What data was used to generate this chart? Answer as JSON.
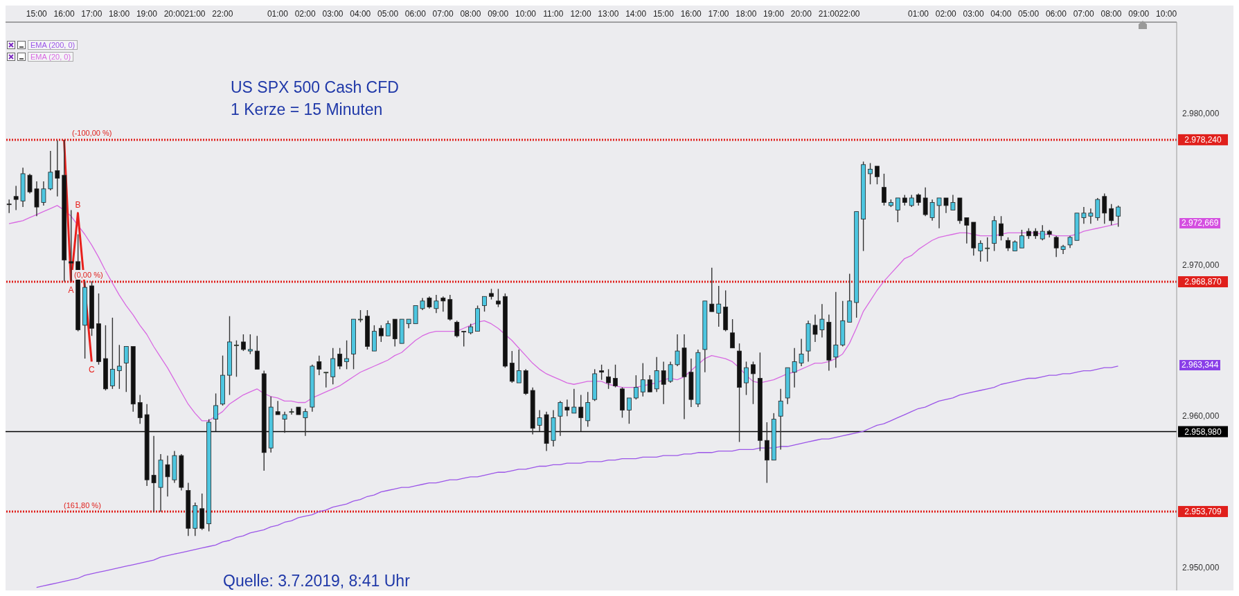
{
  "chart_data": {
    "type": "candlestick",
    "title": "US SPX 500 Cash CFD",
    "subtitle": "1 Kerze = 15 Minuten",
    "annotations": [
      "Quelle: 3.7.2019, 8:41 Uhr",
      {
        "text": "(-100,00 %)",
        "y": 2978.24
      },
      {
        "text": "(0,00 %)",
        "y": 2968.87
      },
      "(161,80 %)",
      "2.972,669",
      "2.963,344"
    ],
    "categories": [
      null,
      null,
      null,
      null,
      "15:00",
      null,
      null,
      null,
      "16:00",
      null,
      null,
      null,
      "17:00",
      null,
      null,
      null,
      "18:00",
      null,
      null,
      null,
      "19:00",
      null,
      null,
      null,
      "20:00",
      null,
      null,
      "21:00",
      null,
      null,
      null,
      "22:00",
      null,
      null,
      null,
      null,
      null,
      null,
      null,
      "01:00",
      null,
      null,
      null,
      "02:00",
      null,
      null,
      null,
      "03:00",
      null,
      null,
      null,
      "04:00",
      null,
      null,
      null,
      "05:00",
      null,
      null,
      null,
      "06:00",
      null,
      null,
      null,
      "07:00",
      null,
      null,
      null,
      "08:00",
      null,
      null,
      null,
      "09:00",
      null,
      null,
      null,
      "10:00",
      null,
      null,
      null,
      "11:00",
      null,
      null,
      null,
      "12:00",
      null,
      null,
      null,
      "13:00",
      null,
      null,
      null,
      "14:00",
      null,
      null,
      null,
      "15:00",
      null,
      null,
      null,
      "16:00",
      null,
      null,
      null,
      "17:00",
      null,
      null,
      null,
      "18:00",
      null,
      null,
      null,
      "19:00",
      null,
      null,
      null,
      "20:00",
      null,
      null,
      null,
      "21:00",
      null,
      null,
      "22:00",
      null,
      null,
      null,
      null,
      null,
      null,
      null,
      null,
      null,
      "01:00",
      null,
      null,
      null,
      "02:00",
      null,
      null,
      null,
      "03:00",
      null,
      null,
      null,
      "04:00",
      null,
      null,
      null,
      "05:00",
      null,
      null,
      null,
      "06:00",
      null,
      null,
      null,
      "07:00",
      null,
      null,
      null,
      "08:00",
      null,
      null,
      null,
      "09:00",
      null,
      null,
      null,
      "10:00",
      null
    ],
    "ohlc": [
      [
        2974.0,
        2974.3,
        2973.4,
        2974.0
      ],
      [
        2974.5,
        2975.2,
        2973.6,
        2974.3
      ],
      [
        2974.2,
        2976.4,
        2973.8,
        2976.0
      ],
      [
        2975.9,
        2976.0,
        2974.7,
        2974.8
      ],
      [
        2975.0,
        2975.5,
        2973.2,
        2973.8
      ],
      [
        2974.1,
        2975.5,
        2973.9,
        2975.0
      ],
      [
        2975.0,
        2977.5,
        2974.9,
        2976.1
      ],
      [
        2976.2,
        2978.2,
        2974.5,
        2975.7
      ],
      [
        2975.9,
        2978.24,
        2968.9,
        2970.3
      ],
      [
        2970.2,
        2973.6,
        2968.9,
        2970.1
      ],
      [
        2970.2,
        2972.0,
        2965.6,
        2965.7
      ],
      [
        2966.0,
        2968.9,
        2963.8,
        2968.5
      ],
      [
        2968.6,
        2968.9,
        2965.3,
        2965.8
      ],
      [
        2966.1,
        2968.1,
        2963.4,
        2963.6
      ],
      [
        2963.8,
        2966.0,
        2961.7,
        2961.8
      ],
      [
        2962.0,
        2966.5,
        2961.8,
        2963.1
      ],
      [
        2963.0,
        2964.7,
        2961.8,
        2963.3
      ],
      [
        2963.5,
        2964.6,
        2961.6,
        2964.6
      ],
      [
        2964.6,
        2964.6,
        2960.3,
        2960.8
      ],
      [
        2960.9,
        2961.4,
        2959.5,
        2959.9
      ],
      [
        2960.1,
        2960.8,
        2955.4,
        2955.8
      ],
      [
        2956.1,
        2958.7,
        2953.7,
        2955.6
      ],
      [
        2955.3,
        2957.5,
        2953.7,
        2957.1
      ],
      [
        2956.8,
        2957.4,
        2954.7,
        2956.0
      ],
      [
        2955.8,
        2957.7,
        2955.6,
        2957.4
      ],
      [
        2957.4,
        2957.5,
        2955.1,
        2955.3
      ],
      [
        2955.1,
        2955.6,
        2952.1,
        2952.6
      ],
      [
        2952.6,
        2954.3,
        2952.1,
        2954.1
      ],
      [
        2953.9,
        2954.9,
        2952.5,
        2952.6
      ],
      [
        2952.9,
        2959.8,
        2952.4,
        2959.6
      ],
      [
        2959.8,
        2961.5,
        2959.0,
        2960.7
      ],
      [
        2960.8,
        2964.0,
        2960.7,
        2962.7
      ],
      [
        2962.7,
        2966.6,
        2961.4,
        2964.9
      ],
      [
        2964.7,
        2965.0,
        2962.6,
        2964.7
      ],
      [
        2964.9,
        2965.4,
        2964.3,
        2964.4
      ],
      [
        2964.3,
        2965.4,
        2964.1,
        2964.4
      ],
      [
        2964.3,
        2965.3,
        2963.1,
        2963.1
      ],
      [
        2962.8,
        2963.0,
        2956.4,
        2957.6
      ],
      [
        2957.9,
        2961.3,
        2957.6,
        2960.6
      ],
      [
        2960.3,
        2961.0,
        2960.1,
        2960.1
      ],
      [
        2959.8,
        2960.3,
        2958.9,
        2960.1
      ],
      [
        2960.3,
        2960.5,
        2960.1,
        2960.3
      ],
      [
        2960.6,
        2960.6,
        2960.1,
        2960.1
      ],
      [
        2959.9,
        2960.5,
        2958.7,
        2960.3
      ],
      [
        2960.6,
        2963.4,
        2960.3,
        2963.3
      ],
      [
        2963.6,
        2964.0,
        2962.7,
        2963.1
      ],
      [
        2962.9,
        2962.9,
        2961.9,
        2962.9
      ],
      [
        2962.6,
        2964.5,
        2962.1,
        2963.8
      ],
      [
        2964.1,
        2964.5,
        2963.1,
        2963.3
      ],
      [
        2963.6,
        2965.0,
        2963.1,
        2963.8
      ],
      [
        2964.1,
        2966.4,
        2963.1,
        2966.4
      ],
      [
        2966.4,
        2967.0,
        2966.2,
        2966.4
      ],
      [
        2966.6,
        2967.0,
        2964.4,
        2964.6
      ],
      [
        2964.3,
        2966.0,
        2964.3,
        2965.6
      ],
      [
        2965.8,
        2966.0,
        2964.9,
        2965.3
      ],
      [
        2965.3,
        2966.3,
        2965.3,
        2966.1
      ],
      [
        2966.4,
        2966.4,
        2964.6,
        2965.1
      ],
      [
        2964.8,
        2966.4,
        2964.8,
        2966.4
      ],
      [
        2966.1,
        2966.4,
        2965.8,
        2966.4
      ],
      [
        2966.1,
        2967.3,
        2966.1,
        2967.3
      ],
      [
        2967.1,
        2967.8,
        2967.0,
        2967.6
      ],
      [
        2967.8,
        2967.9,
        2967.1,
        2967.2
      ],
      [
        2967.1,
        2968.0,
        2966.8,
        2967.6
      ],
      [
        2967.8,
        2967.9,
        2966.9,
        2967.6
      ],
      [
        2967.7,
        2968.0,
        2966.3,
        2966.4
      ],
      [
        2966.2,
        2966.3,
        2965.2,
        2965.3
      ],
      [
        2965.6,
        2965.6,
        2964.6,
        2965.6
      ],
      [
        2965.5,
        2966.1,
        2965.4,
        2965.9
      ],
      [
        2965.6,
        2967.3,
        2965.6,
        2967.1
      ],
      [
        2967.3,
        2967.9,
        2966.9,
        2967.9
      ],
      [
        2968.1,
        2968.4,
        2967.7,
        2967.9
      ],
      [
        2967.6,
        2968.4,
        2967.2,
        2967.4
      ],
      [
        2967.9,
        2968.1,
        2963.2,
        2963.3
      ],
      [
        2963.5,
        2964.3,
        2962.2,
        2962.3
      ],
      [
        2962.2,
        2964.4,
        2962.2,
        2963.0
      ],
      [
        2963.0,
        2963.1,
        2961.4,
        2961.5
      ],
      [
        2961.7,
        2961.9,
        2958.8,
        2959.2
      ],
      [
        2959.4,
        2960.4,
        2959.0,
        2959.9
      ],
      [
        2960.1,
        2960.3,
        2957.7,
        2958.2
      ],
      [
        2958.4,
        2960.4,
        2958.0,
        2959.9
      ],
      [
        2960.0,
        2961.0,
        2958.7,
        2960.9
      ],
      [
        2960.6,
        2961.1,
        2960.0,
        2960.4
      ],
      [
        2960.2,
        2961.8,
        2960.2,
        2960.6
      ],
      [
        2960.6,
        2961.4,
        2959.0,
        2959.9
      ],
      [
        2959.7,
        2961.6,
        2959.3,
        2960.9
      ],
      [
        2961.1,
        2963.1,
        2961.0,
        2962.8
      ],
      [
        2963.0,
        2963.4,
        2962.4,
        2962.9
      ],
      [
        2962.6,
        2963.1,
        2961.8,
        2962.2
      ],
      [
        2962.5,
        2963.4,
        2961.9,
        2962.0
      ],
      [
        2961.8,
        2961.9,
        2959.9,
        2960.4
      ],
      [
        2960.4,
        2961.2,
        2959.5,
        2961.2
      ],
      [
        2961.2,
        2962.7,
        2961.1,
        2961.9
      ],
      [
        2961.6,
        2963.5,
        2961.3,
        2962.4
      ],
      [
        2962.4,
        2962.7,
        2961.6,
        2961.6
      ],
      [
        2961.8,
        2963.9,
        2961.6,
        2963.0
      ],
      [
        2963.0,
        2963.6,
        2960.8,
        2962.1
      ],
      [
        2962.3,
        2963.6,
        2962.2,
        2963.4
      ],
      [
        2963.4,
        2965.4,
        2963.3,
        2964.3
      ],
      [
        2964.5,
        2965.4,
        2959.8,
        2962.6
      ],
      [
        2962.9,
        2963.8,
        2960.6,
        2961.1
      ],
      [
        2960.8,
        2964.4,
        2960.6,
        2964.2
      ],
      [
        2964.4,
        2967.6,
        2962.9,
        2967.6
      ],
      [
        2967.4,
        2969.8,
        2966.9,
        2966.9
      ],
      [
        2966.8,
        2968.6,
        2965.9,
        2967.4
      ],
      [
        2967.2,
        2968.3,
        2965.6,
        2965.7
      ],
      [
        2965.5,
        2966.4,
        2964.5,
        2964.5
      ],
      [
        2964.3,
        2964.8,
        2958.3,
        2961.9
      ],
      [
        2962.2,
        2963.6,
        2961.4,
        2963.2
      ],
      [
        2963.4,
        2963.6,
        2960.8,
        2962.8
      ],
      [
        2962.5,
        2964.2,
        2957.7,
        2958.4
      ],
      [
        2958.4,
        2959.6,
        2955.6,
        2957.1
      ],
      [
        2957.1,
        2960.2,
        2957.1,
        2959.8
      ],
      [
        2960.0,
        2961.8,
        2957.8,
        2961.0
      ],
      [
        2961.2,
        2963.2,
        2960.8,
        2963.2
      ],
      [
        2962.9,
        2964.5,
        2961.9,
        2963.6
      ],
      [
        2963.5,
        2965.1,
        2963.3,
        2964.1
      ],
      [
        2964.3,
        2966.3,
        2963.6,
        2966.1
      ],
      [
        2966.0,
        2966.7,
        2964.9,
        2965.4
      ],
      [
        2965.7,
        2967.4,
        2965.2,
        2966.4
      ],
      [
        2966.2,
        2966.7,
        2963.0,
        2963.7
      ],
      [
        2963.9,
        2968.2,
        2963.2,
        2964.7
      ],
      [
        2964.7,
        2967.6,
        2964.6,
        2966.3
      ],
      [
        2966.2,
        2969.4,
        2966.2,
        2967.6
      ],
      [
        2967.5,
        2973.5,
        2966.5,
        2973.5
      ],
      [
        2973.0,
        2976.8,
        2970.9,
        2976.6
      ],
      [
        2976.0,
        2976.7,
        2975.3,
        2976.3
      ],
      [
        2976.5,
        2976.5,
        2975.3,
        2975.8
      ],
      [
        2975.1,
        2976.0,
        2973.9,
        2974.1
      ],
      [
        2973.9,
        2974.3,
        2973.8,
        2974.1
      ],
      [
        2973.6,
        2974.4,
        2972.8,
        2974.4
      ],
      [
        2974.4,
        2974.6,
        2973.9,
        2974.1
      ],
      [
        2973.9,
        2974.6,
        2973.8,
        2974.4
      ],
      [
        2974.6,
        2974.7,
        2973.9,
        2974.1
      ],
      [
        2974.4,
        2975.1,
        2973.2,
        2973.3
      ],
      [
        2973.1,
        2974.3,
        2972.9,
        2974.1
      ],
      [
        2973.9,
        2974.4,
        2972.4,
        2974.4
      ],
      [
        2974.4,
        2974.4,
        2973.4,
        2973.9
      ],
      [
        2973.6,
        2974.6,
        2973.6,
        2974.1
      ],
      [
        2974.4,
        2974.4,
        2972.7,
        2972.9
      ],
      [
        2973.1,
        2973.1,
        2971.4,
        2972.6
      ],
      [
        2972.8,
        2972.8,
        2970.6,
        2971.1
      ],
      [
        2970.9,
        2971.6,
        2970.2,
        2971.4
      ],
      [
        2971.1,
        2971.8,
        2970.2,
        2971.1
      ],
      [
        2971.4,
        2973.2,
        2970.9,
        2972.9
      ],
      [
        2972.7,
        2973.2,
        2971.6,
        2971.9
      ],
      [
        2971.6,
        2971.8,
        2970.9,
        2971.1
      ],
      [
        2970.9,
        2971.6,
        2970.9,
        2971.5
      ],
      [
        2971.1,
        2972.3,
        2971.1,
        2971.9
      ],
      [
        2972.2,
        2972.4,
        2971.7,
        2971.9
      ],
      [
        2972.2,
        2972.4,
        2971.7,
        2971.9
      ],
      [
        2971.7,
        2972.6,
        2971.6,
        2972.2
      ],
      [
        2972.2,
        2972.3,
        2971.8,
        2972.0
      ],
      [
        2971.8,
        2971.9,
        2970.5,
        2971.1
      ],
      [
        2971.0,
        2971.3,
        2970.7,
        2971.2
      ],
      [
        2971.3,
        2971.9,
        2971.1,
        2971.8
      ],
      [
        2971.6,
        2973.4,
        2971.6,
        2973.4
      ],
      [
        2973.1,
        2973.8,
        2972.7,
        2973.4
      ],
      [
        2973.2,
        2973.7,
        2972.7,
        2973.4
      ],
      [
        2973.1,
        2974.4,
        2972.9,
        2974.3
      ],
      [
        2974.5,
        2974.7,
        2972.7,
        2973.4
      ],
      [
        2973.7,
        2974.0,
        2972.6,
        2972.9
      ],
      [
        2973.2,
        2973.9,
        2972.5,
        2973.8
      ],
      null,
      null,
      null,
      null,
      null,
      null,
      null,
      null
    ],
    "colors": [
      "#111111",
      "#111111",
      "#4dc6e0",
      "#111111",
      "#111111",
      "#4dc6e0",
      "#4dc6e0",
      "#111111",
      "#111111",
      "#111111",
      "#111111",
      "#4dc6e0",
      "#111111",
      "#111111",
      "#111111",
      "#4dc6e0",
      "#4dc6e0",
      "#4dc6e0",
      "#111111",
      "#111111",
      "#111111",
      "#111111",
      "#4dc6e0",
      "#111111",
      "#4dc6e0",
      "#111111",
      "#111111",
      "#4dc6e0",
      "#111111",
      "#4dc6e0",
      "#4dc6e0",
      "#4dc6e0",
      "#4dc6e0",
      "#8fe08b",
      "#111111",
      "#4dc6e0",
      "#111111",
      "#111111",
      "#4dc6e0",
      "#111111",
      "#4dc6e0",
      "#8fe08b",
      "#111111",
      "#4dc6e0",
      "#4dc6e0",
      "#111111",
      "#8fe08b",
      "#4dc6e0",
      "#111111",
      "#4dc6e0",
      "#4dc6e0",
      "#8fe08b",
      "#111111",
      "#4dc6e0",
      "#111111",
      "#4dc6e0",
      "#111111",
      "#4dc6e0",
      "#4dc6e0",
      "#4dc6e0",
      "#4dc6e0",
      "#111111",
      "#4dc6e0",
      "#111111",
      "#111111",
      "#111111",
      "#111111",
      "#4dc6e0",
      "#4dc6e0",
      "#4dc6e0",
      "#111111",
      "#111111",
      "#111111",
      "#111111",
      "#4dc6e0",
      "#111111",
      "#111111",
      "#4dc6e0",
      "#111111",
      "#4dc6e0",
      "#4dc6e0",
      "#111111",
      "#4dc6e0",
      "#111111",
      "#4dc6e0",
      "#4dc6e0",
      "#111111",
      "#111111",
      "#111111",
      "#111111",
      "#4dc6e0",
      "#4dc6e0",
      "#4dc6e0",
      "#111111",
      "#4dc6e0",
      "#111111",
      "#4dc6e0",
      "#4dc6e0",
      "#111111",
      "#111111",
      "#4dc6e0",
      "#4dc6e0",
      "#111111",
      "#4dc6e0",
      "#111111",
      "#111111",
      "#111111",
      "#4dc6e0",
      "#111111",
      "#111111",
      "#111111",
      "#4dc6e0",
      "#4dc6e0",
      "#4dc6e0",
      "#4dc6e0",
      "#4dc6e0",
      "#4dc6e0",
      "#111111",
      "#4dc6e0",
      "#111111",
      "#4dc6e0",
      "#4dc6e0",
      "#4dc6e0",
      "#4dc6e0",
      "#4dc6e0",
      "#4dc6e0",
      "#111111",
      "#111111",
      "#4dc6e0",
      "#4dc6e0",
      "#111111",
      "#4dc6e0",
      "#111111",
      "#111111",
      "#4dc6e0",
      "#4dc6e0",
      "#111111",
      "#4dc6e0",
      "#111111",
      "#111111",
      "#111111",
      "#4dc6e0",
      "#8fe08b",
      "#4dc6e0",
      "#111111",
      "#111111",
      "#4dc6e0",
      "#4dc6e0",
      "#111111",
      "#111111",
      "#4dc6e0",
      "#111111",
      "#111111",
      "#4dc6e0",
      "#4dc6e0",
      "#4dc6e0",
      "#4dc6e0",
      "#4dc6e0",
      "#4dc6e0",
      "#111111",
      "#111111",
      "#4dc6e0",
      null,
      null,
      null,
      null,
      null,
      null,
      null,
      null
    ],
    "series": [
      {
        "type": "line",
        "name": "EMA (200, 0)",
        "color": "#9b55e8",
        "values": [
          null,
          null,
          null,
          null,
          2948.7,
          2948.8,
          2948.9,
          2949.0,
          2949.1,
          2949.2,
          2949.3,
          2949.5,
          2949.6,
          2949.7,
          2949.8,
          2949.9,
          2950.0,
          2950.1,
          2950.2,
          2950.3,
          2950.4,
          2950.5,
          2950.7,
          2950.8,
          2950.9,
          2951.0,
          2951.1,
          2951.2,
          2951.3,
          2951.4,
          2951.5,
          2951.7,
          2951.8,
          2952.0,
          2952.1,
          2952.3,
          2952.4,
          2952.5,
          2952.7,
          2952.8,
          2953.0,
          2953.1,
          2953.3,
          2953.4,
          2953.5,
          2953.7,
          2953.8,
          2954.0,
          2954.1,
          2954.2,
          2954.4,
          2954.5,
          2954.7,
          2954.8,
          2955.0,
          2955.1,
          2955.2,
          2955.3,
          2955.3,
          2955.4,
          2955.5,
          2955.6,
          2955.6,
          2955.7,
          2955.8,
          2955.8,
          2955.9,
          2956.0,
          2956.0,
          2956.1,
          2956.2,
          2956.3,
          2956.3,
          2956.4,
          2956.5,
          2956.5,
          2956.6,
          2956.7,
          2956.7,
          2956.8,
          2956.8,
          2956.9,
          2956.9,
          2956.9,
          2957.0,
          2957.0,
          2957.0,
          2957.1,
          2957.1,
          2957.2,
          2957.2,
          2957.2,
          2957.3,
          2957.3,
          2957.3,
          2957.4,
          2957.4,
          2957.4,
          2957.5,
          2957.5,
          2957.6,
          2957.6,
          2957.6,
          2957.7,
          2957.7,
          2957.7,
          2957.8,
          2957.8,
          2957.8,
          2957.9,
          2957.9,
          2957.9,
          2958.0,
          2958.0,
          2958.1,
          2958.2,
          2958.3,
          2958.4,
          2958.5,
          2958.5,
          2958.6,
          2958.7,
          2958.8,
          2958.9,
          2959.0,
          2959.2,
          2959.4,
          2959.5,
          2959.7,
          2959.9,
          2960.1,
          2960.3,
          2960.5,
          2960.6,
          2960.8,
          2961.0,
          2961.1,
          2961.2,
          2961.4,
          2961.5,
          2961.6,
          2961.7,
          2961.8,
          2961.9,
          2962.1,
          2962.2,
          2962.3,
          2962.4,
          2962.5,
          2962.5,
          2962.6,
          2962.7,
          2962.7,
          2962.8,
          2962.8,
          2962.9,
          2963.0,
          2963.0,
          2963.1,
          2963.2,
          2963.2,
          2963.3,
          null,
          null,
          null,
          null,
          null,
          null,
          null,
          null
        ]
      },
      {
        "type": "line",
        "name": "EMA (20, 0)",
        "color": "#d869e2",
        "values": [
          2972.7,
          2972.8,
          2972.9,
          2973.1,
          2973.3,
          2973.5,
          2973.7,
          2973.9,
          2973.6,
          2973.2,
          2972.6,
          2972.0,
          2971.3,
          2970.5,
          2969.6,
          2968.8,
          2968.0,
          2967.3,
          2966.7,
          2966.0,
          2965.4,
          2964.6,
          2963.9,
          2963.2,
          2962.4,
          2961.6,
          2960.8,
          2960.2,
          2959.7,
          2959.7,
          2960.0,
          2960.3,
          2960.8,
          2961.1,
          2961.4,
          2961.6,
          2961.8,
          2961.5,
          2961.3,
          2961.2,
          2961.0,
          2961.0,
          2960.9,
          2960.9,
          2961.2,
          2961.4,
          2961.6,
          2961.8,
          2962.0,
          2962.3,
          2962.6,
          2962.9,
          2963.1,
          2963.3,
          2963.5,
          2963.7,
          2964.0,
          2964.2,
          2964.6,
          2965.0,
          2965.3,
          2965.5,
          2965.6,
          2965.6,
          2965.6,
          2965.6,
          2965.8,
          2966.0,
          2966.2,
          2966.3,
          2966.1,
          2965.8,
          2965.4,
          2965.0,
          2964.5,
          2964.0,
          2963.5,
          2963.1,
          2962.8,
          2962.6,
          2962.4,
          2962.2,
          2962.1,
          2962.2,
          2962.3,
          2962.3,
          2962.3,
          2962.1,
          2962.0,
          2961.9,
          2961.9,
          2961.9,
          2962.0,
          2962.1,
          2962.2,
          2962.4,
          2962.5,
          2962.4,
          2962.6,
          2963.0,
          2963.4,
          2963.8,
          2964.0,
          2963.9,
          2963.8,
          2963.6,
          2963.2,
          2962.7,
          2962.3,
          2962.2,
          2962.3,
          2962.4,
          2962.6,
          2962.8,
          2962.9,
          2963.1,
          2963.3,
          2963.5,
          2963.5,
          2963.6,
          2963.8,
          2964.1,
          2964.8,
          2965.8,
          2966.9,
          2967.6,
          2968.3,
          2968.9,
          2969.4,
          2969.9,
          2970.4,
          2970.6,
          2971.0,
          2971.3,
          2971.6,
          2971.8,
          2971.9,
          2972.0,
          2972.1,
          2972.1,
          2972.0,
          2971.9,
          2971.9,
          2971.9,
          2972.0,
          2972.1,
          2972.1,
          2972.1,
          2972.1,
          2972.1,
          2972.0,
          2972.0,
          2971.9,
          2971.9,
          2971.9,
          2972.0,
          2972.2,
          2972.3,
          2972.4,
          2972.5,
          2972.6,
          2972.7,
          null,
          null,
          null,
          null,
          null,
          null,
          null,
          null
        ]
      },
      {
        "type": "line",
        "color": "#e8201c",
        "values": [
          null,
          null,
          null,
          null,
          null,
          null,
          null,
          null,
          2978.24,
          2968.87,
          2973.4,
          null,
          2963.6,
          null,
          null,
          null,
          null,
          null,
          null,
          null,
          null,
          null,
          null,
          null,
          null,
          null,
          null,
          null,
          null,
          null,
          null,
          null,
          null,
          null,
          null,
          null,
          null,
          null,
          null,
          null,
          null,
          null,
          null,
          null,
          null,
          null,
          null,
          null,
          null,
          null,
          null,
          null,
          null,
          null,
          null,
          null,
          null,
          null,
          null,
          null,
          null,
          null,
          null,
          null,
          null,
          null,
          null,
          null,
          null,
          null,
          null,
          null,
          null,
          null,
          null,
          null,
          null,
          null,
          null,
          null,
          null,
          null,
          null,
          null,
          null,
          null,
          null,
          null,
          null,
          null,
          null,
          null,
          null,
          null,
          null,
          null,
          null,
          null,
          null,
          null,
          null,
          null,
          null,
          null,
          null,
          null,
          null,
          null,
          null,
          null,
          null,
          null,
          null,
          null,
          null,
          null,
          null,
          null,
          null,
          null,
          null,
          null,
          null,
          null,
          null,
          null,
          null,
          null,
          null,
          null,
          null,
          null,
          null,
          null,
          null,
          null,
          null,
          null,
          null,
          null,
          null,
          null,
          null,
          null,
          null,
          null,
          null,
          null,
          null,
          null,
          null,
          null,
          null,
          null,
          null,
          null,
          null,
          null,
          null,
          null,
          null,
          null,
          null,
          null,
          null,
          null,
          null,
          null,
          null,
          null
        ],
        "value_labels": [
          null,
          null,
          null,
          null,
          null,
          null,
          null,
          null,
          null,
          "A",
          "B",
          null,
          "C",
          null,
          null,
          null,
          null,
          null,
          null,
          null,
          null,
          null,
          null,
          null,
          null,
          null,
          null,
          null,
          null,
          null,
          null,
          null,
          null,
          null,
          null,
          null,
          null,
          null,
          null,
          null,
          null,
          null,
          null,
          null,
          null,
          null,
          null,
          null,
          null,
          null,
          null,
          null,
          null,
          null,
          null,
          null,
          null,
          null,
          null,
          null,
          null,
          null,
          null,
          null,
          null,
          null,
          null,
          null,
          null,
          null,
          null,
          null,
          null,
          null,
          null,
          null,
          null,
          null,
          null,
          null,
          null,
          null,
          null,
          null,
          null,
          null,
          null,
          null,
          null,
          null,
          null,
          null,
          null,
          null,
          null,
          null,
          null,
          null,
          null,
          null,
          null,
          null,
          null,
          null,
          null,
          null,
          null,
          null,
          null,
          null,
          null,
          null,
          null,
          null,
          null,
          null,
          null,
          null,
          null,
          null,
          null,
          null,
          null,
          null,
          null,
          null,
          null,
          null,
          null,
          null,
          null,
          null,
          null,
          null,
          null,
          null,
          null,
          null,
          null,
          null,
          null,
          null,
          null,
          null,
          null,
          null,
          null,
          null,
          null,
          null,
          null,
          null,
          null,
          null,
          null,
          null,
          null,
          null,
          null,
          null,
          null,
          null,
          null,
          null,
          null,
          null,
          null,
          null,
          null,
          null
        ]
      }
    ],
    "ylim": [
      2948.5,
      2986
    ],
    "yticks": [
      {
        "value": 2950,
        "label": "2.950,000"
      },
      {
        "value": 2960,
        "label": "2.960,000"
      },
      {
        "value": 2970,
        "label": "2.970,000"
      },
      {
        "value": 2980,
        "label": "2.980,000"
      }
    ],
    "ref_lines": [
      {
        "axis": "y",
        "value": 2978.24,
        "label": "2.978,240",
        "color": "#e0201c",
        "line_style": "dotted"
      },
      {
        "axis": "y",
        "value": 2968.87,
        "label": "2.968,870",
        "color": "#e0201c",
        "line_style": "dotted"
      },
      {
        "axis": "y",
        "value": 2958.98,
        "label": "2.958,980",
        "color": "#000000",
        "line_style": "solid"
      },
      {
        "axis": "y",
        "value": 2953.709,
        "label": "2.953,709",
        "color": "#e0201c",
        "line_style": "dotted"
      }
    ],
    "legend": "top left"
  }
}
